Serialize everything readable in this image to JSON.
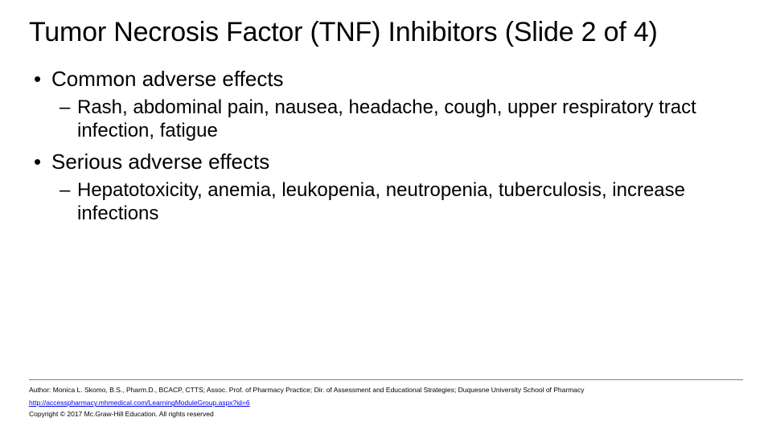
{
  "title_fontsize": 34,
  "lvl1_fontsize": 26,
  "lvl2_fontsize": 24,
  "footer_fontsize": 8.5,
  "background_color": "#ffffff",
  "text_color": "#000000",
  "link_color": "#0000ee",
  "divider_color": "#808080",
  "slide": {
    "title": "Tumor Necrosis Factor (TNF) Inhibitors (Slide 2 of 4)",
    "bullets": [
      {
        "text": "Common adverse effects",
        "children": [
          "Rash, abdominal pain, nausea, headache, cough, upper respiratory tract infection, fatigue"
        ]
      },
      {
        "text": "Serious adverse effects",
        "children": [
          "Hepatotoxicity, anemia, leukopenia, neutropenia, tuberculosis, increase infections"
        ]
      }
    ]
  },
  "footer": {
    "author": "Author: Monica L. Skomo, B.S., Pharm.D., BCACP, CTTS; Assoc. Prof. of Pharmacy Practice; Dir. of Assessment and Educational Strategies; Duquesne University School of Pharmacy",
    "link": "http://accesspharmacy.mhmedical.com/LearningModuleGroup.aspx?id=6",
    "copyright": "Copyright © 2017 Mc.Graw-Hill Education. All rights reserved"
  }
}
